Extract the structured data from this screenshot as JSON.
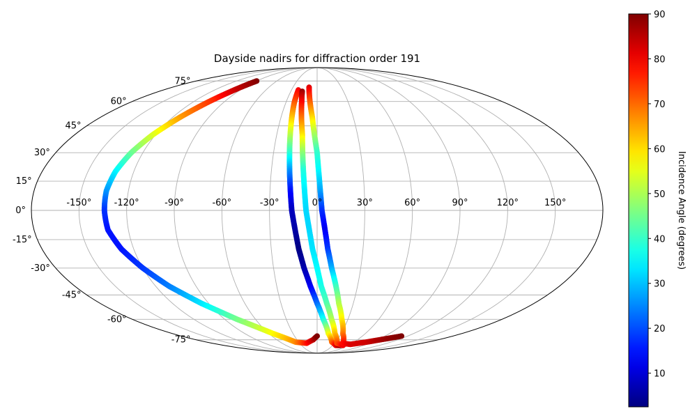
{
  "chart_data": {
    "type": "scatter",
    "projection": "mollweide",
    "title": "Dayside nadirs for diffraction order 191",
    "longitude_ticks": [
      -150,
      -120,
      -90,
      -60,
      -30,
      0,
      30,
      60,
      90,
      120,
      150
    ],
    "latitude_ticks": [
      -75,
      -60,
      -45,
      -30,
      -15,
      0,
      15,
      30,
      45,
      60,
      75
    ],
    "longitude_tick_labels": [
      "-150°",
      "-120°",
      "-90°",
      "-60°",
      "-30°",
      "0°",
      "30°",
      "60°",
      "90°",
      "120°",
      "150°"
    ],
    "latitude_tick_labels": [
      "-75°",
      "-60°",
      "-45°",
      "-30°",
      "-15°",
      "0°",
      "15°",
      "30°",
      "45°",
      "60°",
      "75°"
    ],
    "grid": true,
    "colorbar": {
      "label": "Incidence Angle (degrees)",
      "colormap": "jet",
      "range": [
        2.5,
        90
      ],
      "ticks": [
        10,
        20,
        30,
        40,
        50,
        60,
        70,
        80,
        90
      ],
      "tick_labels": [
        "10",
        "20",
        "30",
        "40",
        "50",
        "60",
        "70",
        "80",
        "90"
      ],
      "placement": "right"
    },
    "series": [
      {
        "points": [
          {
            "lon": -90,
            "lat": 75,
            "c": 90
          },
          {
            "lon": -97,
            "lat": 68,
            "c": 84
          },
          {
            "lon": -105,
            "lat": 60,
            "c": 75
          },
          {
            "lon": -114,
            "lat": 50,
            "c": 66
          },
          {
            "lon": -122,
            "lat": 40,
            "c": 55
          },
          {
            "lon": -128,
            "lat": 30,
            "c": 45
          },
          {
            "lon": -132,
            "lat": 20,
            "c": 35
          },
          {
            "lon": -134,
            "lat": 10,
            "c": 27
          },
          {
            "lon": -134,
            "lat": 0,
            "c": 18
          },
          {
            "lon": -133,
            "lat": -10,
            "c": 15
          },
          {
            "lon": -128,
            "lat": -20,
            "c": 15
          },
          {
            "lon": -120,
            "lat": -30,
            "c": 18
          },
          {
            "lon": -110,
            "lat": -40,
            "c": 24
          },
          {
            "lon": -96,
            "lat": -50,
            "c": 33
          },
          {
            "lon": -78,
            "lat": -60,
            "c": 45
          },
          {
            "lon": -55,
            "lat": -70,
            "c": 57
          },
          {
            "lon": -35,
            "lat": -77,
            "c": 67
          },
          {
            "lon": -18,
            "lat": -78,
            "c": 77
          },
          {
            "lon": -6,
            "lat": -75,
            "c": 84
          },
          {
            "lon": 0,
            "lat": -72,
            "c": 90
          }
        ]
      },
      {
        "points": [
          {
            "lon": -22,
            "lat": 68,
            "c": 80
          },
          {
            "lon": -22,
            "lat": 60,
            "c": 73
          },
          {
            "lon": -21,
            "lat": 50,
            "c": 63
          },
          {
            "lon": -20,
            "lat": 40,
            "c": 52
          },
          {
            "lon": -19,
            "lat": 30,
            "c": 40
          },
          {
            "lon": -18,
            "lat": 20,
            "c": 26
          },
          {
            "lon": -17,
            "lat": 10,
            "c": 15
          },
          {
            "lon": -16,
            "lat": 0,
            "c": 8
          },
          {
            "lon": -14,
            "lat": -10,
            "c": 6
          },
          {
            "lon": -12,
            "lat": -20,
            "c": 3
          },
          {
            "lon": -9,
            "lat": -30,
            "c": 6
          },
          {
            "lon": -5,
            "lat": -40,
            "c": 12
          },
          {
            "lon": 0,
            "lat": -50,
            "c": 22
          },
          {
            "lon": 6,
            "lat": -60,
            "c": 36
          },
          {
            "lon": 14,
            "lat": -70,
            "c": 55
          },
          {
            "lon": 24,
            "lat": -77,
            "c": 70
          },
          {
            "lon": 36,
            "lat": -80,
            "c": 80
          },
          {
            "lon": 45,
            "lat": -80,
            "c": 88
          }
        ]
      },
      {
        "points": [
          {
            "lon": -17,
            "lat": 67,
            "c": 88
          },
          {
            "lon": -15,
            "lat": 60,
            "c": 80
          },
          {
            "lon": -13,
            "lat": 50,
            "c": 70
          },
          {
            "lon": -11,
            "lat": 40,
            "c": 60
          },
          {
            "lon": -10,
            "lat": 30,
            "c": 48
          },
          {
            "lon": -9,
            "lat": 20,
            "c": 38
          },
          {
            "lon": -8,
            "lat": 10,
            "c": 34
          },
          {
            "lon": -7,
            "lat": 0,
            "c": 32
          },
          {
            "lon": -5,
            "lat": -10,
            "c": 32
          },
          {
            "lon": -3,
            "lat": -20,
            "c": 33
          },
          {
            "lon": 0,
            "lat": -30,
            "c": 35
          },
          {
            "lon": 3,
            "lat": -40,
            "c": 37
          },
          {
            "lon": 8,
            "lat": -50,
            "c": 42
          },
          {
            "lon": 14,
            "lat": -60,
            "c": 50
          },
          {
            "lon": 22,
            "lat": -70,
            "c": 62
          },
          {
            "lon": 34,
            "lat": -78,
            "c": 72
          },
          {
            "lon": 50,
            "lat": -80,
            "c": 80
          }
        ]
      },
      {
        "points": [
          {
            "lon": -10,
            "lat": 70,
            "c": 82
          },
          {
            "lon": -7,
            "lat": 60,
            "c": 72
          },
          {
            "lon": -4,
            "lat": 50,
            "c": 61
          },
          {
            "lon": -2,
            "lat": 40,
            "c": 50
          },
          {
            "lon": 0,
            "lat": 30,
            "c": 40
          },
          {
            "lon": 1,
            "lat": 20,
            "c": 35
          },
          {
            "lon": 2,
            "lat": 10,
            "c": 28
          },
          {
            "lon": 3,
            "lat": 0,
            "c": 18
          },
          {
            "lon": 5,
            "lat": -10,
            "c": 12
          },
          {
            "lon": 7,
            "lat": -20,
            "c": 18
          },
          {
            "lon": 10,
            "lat": -30,
            "c": 28
          },
          {
            "lon": 14,
            "lat": -40,
            "c": 40
          },
          {
            "lon": 18,
            "lat": -50,
            "c": 50
          },
          {
            "lon": 24,
            "lat": -60,
            "c": 58
          },
          {
            "lon": 32,
            "lat": -70,
            "c": 68
          },
          {
            "lon": 44,
            "lat": -78,
            "c": 78
          },
          {
            "lon": 60,
            "lat": -79,
            "c": 82
          },
          {
            "lon": 80,
            "lat": -77,
            "c": 83
          },
          {
            "lon": 100,
            "lat": -74,
            "c": 88
          },
          {
            "lon": 112,
            "lat": -72,
            "c": 90
          }
        ]
      }
    ]
  }
}
